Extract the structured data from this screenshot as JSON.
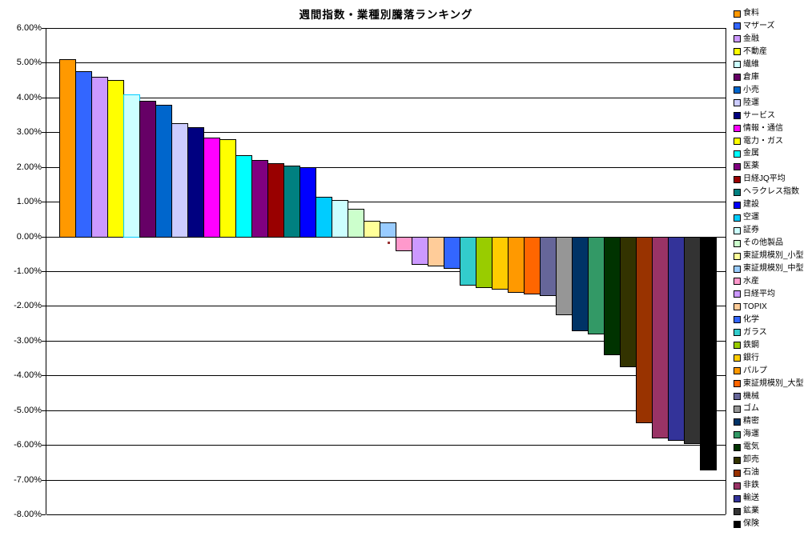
{
  "chart_data": {
    "type": "bar",
    "title": "週間指数・業種別騰落ランキング",
    "xlabel": "",
    "ylabel": "",
    "unit": "percent",
    "ylim": [
      -8,
      6
    ],
    "grid": true,
    "legend_position": "right",
    "ytick_labels": [
      "6.00%",
      "5.00%",
      "4.00%",
      "3.00%",
      "2.00%",
      "1.00%",
      "0.00%",
      "-1.00%",
      "-2.00%",
      "-3.00%",
      "-4.00%",
      "-5.00%",
      "-6.00%",
      "-7.00%",
      "-8.00%"
    ],
    "series": [
      {
        "name": "食料",
        "value": 5.1,
        "color": "#FF9900"
      },
      {
        "name": "マザーズ",
        "value": 4.75,
        "color": "#3366FF"
      },
      {
        "name": "金融",
        "value": 4.6,
        "color": "#CC99FF"
      },
      {
        "name": "不動産",
        "value": 4.5,
        "color": "#FFFF00"
      },
      {
        "name": "繊維",
        "value": 4.1,
        "color": "#CCFFFF",
        "border": "#00CCFF"
      },
      {
        "name": "倉庫",
        "value": 3.9,
        "color": "#660066"
      },
      {
        "name": "小売",
        "value": 3.8,
        "color": "#0066CC"
      },
      {
        "name": "陸運",
        "value": 3.25,
        "color": "#CCCCFF"
      },
      {
        "name": "サービス",
        "value": 3.15,
        "color": "#000080"
      },
      {
        "name": "情報・通信",
        "value": 2.85,
        "color": "#FF00FF"
      },
      {
        "name": "電力・ガス",
        "value": 2.8,
        "color": "#FFFF00"
      },
      {
        "name": "金属",
        "value": 2.35,
        "color": "#00FFFF"
      },
      {
        "name": "医薬",
        "value": 2.2,
        "color": "#800080"
      },
      {
        "name": "日経JQ平均",
        "value": 2.1,
        "color": "#990000"
      },
      {
        "name": "ヘラクレス指数",
        "value": 2.05,
        "color": "#008080"
      },
      {
        "name": "建設",
        "value": 2.0,
        "color": "#0000FF"
      },
      {
        "name": "空運",
        "value": 1.15,
        "color": "#00CCFF"
      },
      {
        "name": "証券",
        "value": 1.05,
        "color": "#CCFFFF"
      },
      {
        "name": "その他製品",
        "value": 0.8,
        "color": "#CCFFCC"
      },
      {
        "name": "東証規模別_小型",
        "value": 0.45,
        "color": "#FFFF99"
      },
      {
        "name": "東証規模別_中型",
        "value": 0.4,
        "color": "#99CCFF"
      },
      {
        "name": "水産",
        "value": -0.4,
        "color": "#FF99CC"
      },
      {
        "name": "日経平均",
        "value": -0.8,
        "color": "#CC99FF"
      },
      {
        "name": "TOPIX",
        "value": -0.85,
        "color": "#FFCC99"
      },
      {
        "name": "化学",
        "value": -0.9,
        "color": "#3366FF"
      },
      {
        "name": "ガラス",
        "value": -1.4,
        "color": "#33CCCC"
      },
      {
        "name": "鉄鋼",
        "value": -1.45,
        "color": "#99CC00"
      },
      {
        "name": "銀行",
        "value": -1.5,
        "color": "#FFCC00"
      },
      {
        "name": "パルプ",
        "value": -1.6,
        "color": "#FF9900"
      },
      {
        "name": "東証規模別_大型",
        "value": -1.65,
        "color": "#FF6600"
      },
      {
        "name": "機械",
        "value": -1.7,
        "color": "#666699"
      },
      {
        "name": "ゴム",
        "value": -2.25,
        "color": "#969696"
      },
      {
        "name": "精密",
        "value": -2.7,
        "color": "#003366"
      },
      {
        "name": "海運",
        "value": -2.8,
        "color": "#339966"
      },
      {
        "name": "電気",
        "value": -3.4,
        "color": "#003300"
      },
      {
        "name": "卸売",
        "value": -3.75,
        "color": "#333300"
      },
      {
        "name": "石油",
        "value": -5.35,
        "color": "#993300"
      },
      {
        "name": "非鉄",
        "value": -5.8,
        "color": "#993366"
      },
      {
        "name": "輸送",
        "value": -5.85,
        "color": "#333399"
      },
      {
        "name": "鉱業",
        "value": -5.95,
        "color": "#333333"
      },
      {
        "name": "保険",
        "value": -6.7,
        "color": "#000000"
      }
    ]
  }
}
